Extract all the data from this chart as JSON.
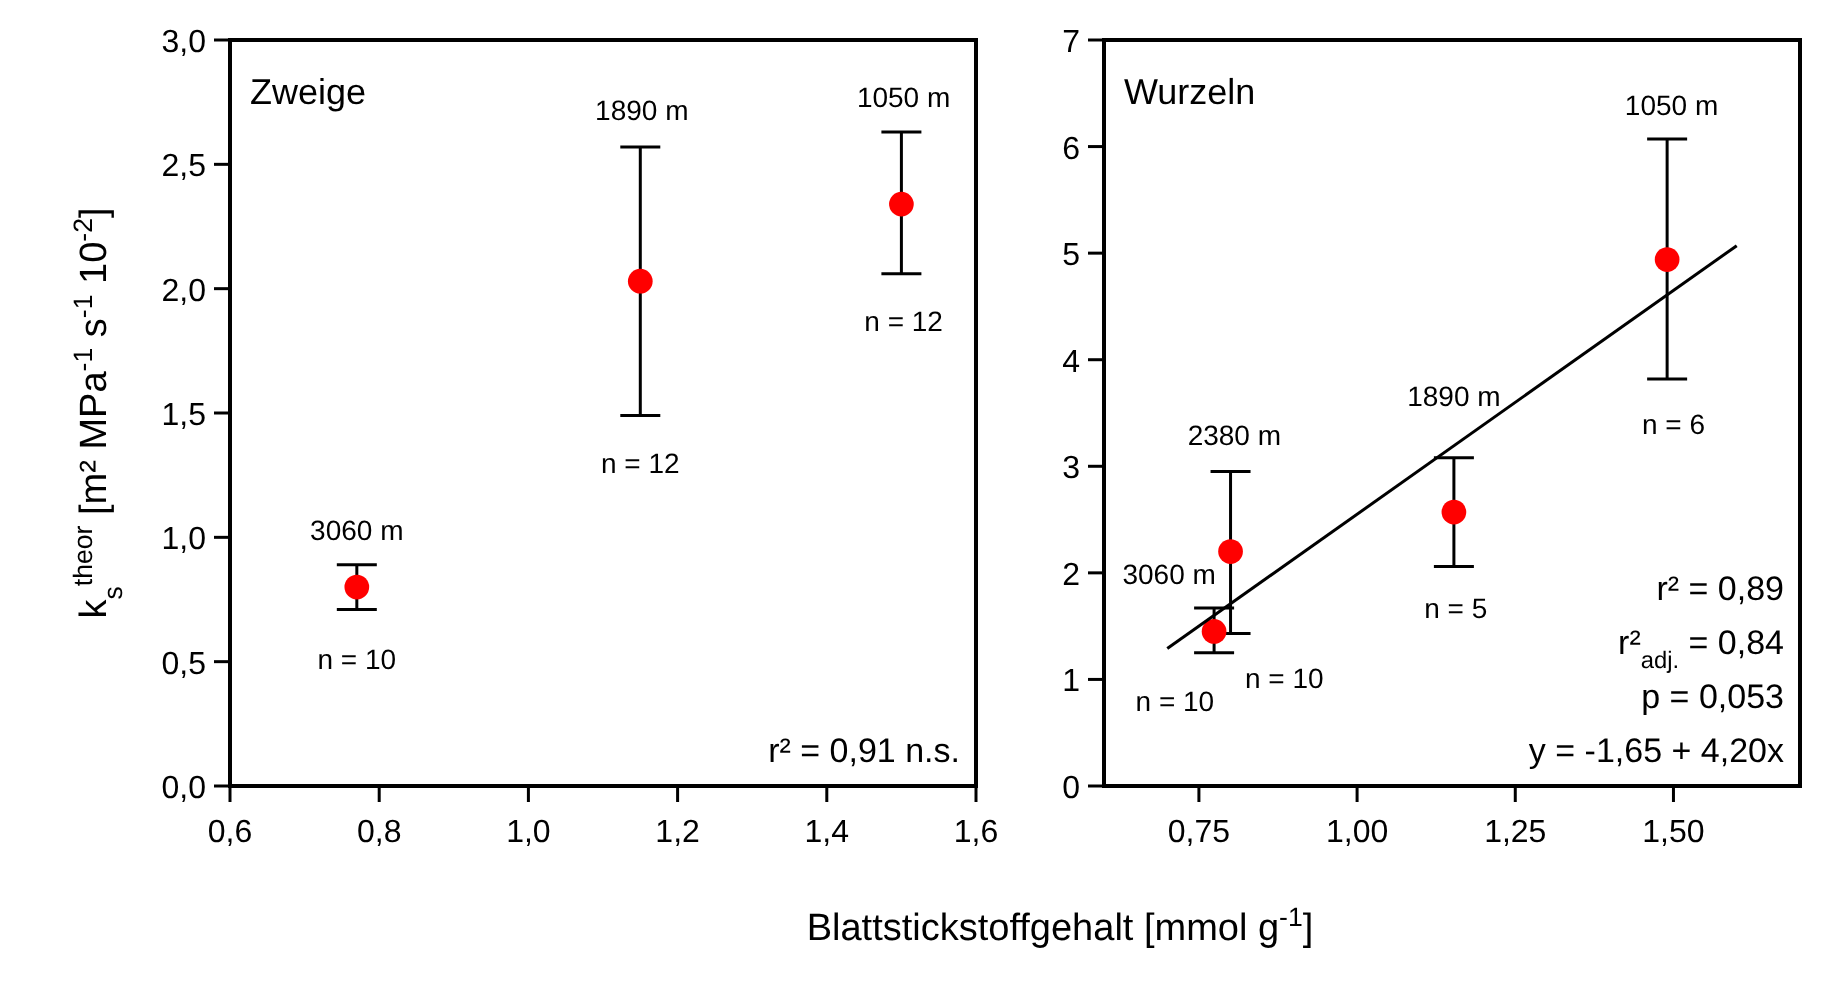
{
  "chart_data": [
    {
      "type": "scatter",
      "title": "Zweige",
      "ylabel": "k$_{s}$$^{theor}$ [m² MPa$^{-1}$ s$^{-1}$ 10$^{-2}$]",
      "xlabel": "Blattstickstoffgehalt [mmol g$^{-1}$]",
      "marker": "circle",
      "grid": false,
      "xlim": [
        0.6,
        1.6
      ],
      "xticks": [
        {
          "value": 0.6,
          "label": "0,6"
        },
        {
          "value": 0.8,
          "label": "0,8"
        },
        {
          "value": 1.0,
          "label": "1,0"
        },
        {
          "value": 1.2,
          "label": "1,2"
        },
        {
          "value": 1.4,
          "label": "1,4"
        },
        {
          "value": 1.6,
          "label": "1,6"
        }
      ],
      "ylim": [
        0,
        3
      ],
      "yticks": [
        {
          "value": 0,
          "label": "0,0"
        },
        {
          "value": 0.5,
          "label": "0,5"
        },
        {
          "value": 1.0,
          "label": "1,0"
        },
        {
          "value": 1.5,
          "label": "1,5"
        },
        {
          "value": 2.0,
          "label": "2,0"
        },
        {
          "value": 2.5,
          "label": "2,5"
        },
        {
          "value": 3.0,
          "label": "3,0"
        }
      ],
      "series": [
        {
          "type": "scatter",
          "color": "#ff0000",
          "x": [
            0.77,
            1.15,
            1.5
          ],
          "values": [
            0.8,
            2.03,
            2.34
          ],
          "errors": [
            [
              0.71,
              0.89
            ],
            [
              1.49,
              2.57
            ],
            [
              2.06,
              2.63
            ]
          ]
        }
      ],
      "annotations": [
        "3060 m",
        "n = 10",
        "1890 m",
        "n = 12",
        "1050 m",
        "n = 12",
        "r² = 0,91 n.s."
      ]
    },
    {
      "type": "scatter",
      "title": "Wurzeln",
      "marker": "circle",
      "grid": false,
      "xlim": [
        0.6,
        1.7
      ],
      "xticks": [
        {
          "value": 0.75,
          "label": "0,75"
        },
        {
          "value": 1.0,
          "label": "1,00"
        },
        {
          "value": 1.25,
          "label": "1,25"
        },
        {
          "value": 1.5,
          "label": "1,50"
        }
      ],
      "ylim": [
        0,
        7
      ],
      "yticks": [
        0,
        1,
        2,
        3,
        4,
        5,
        6,
        7
      ],
      "series": [
        {
          "type": "scatter",
          "color": "#ff0000",
          "x": [
            0.774,
            0.8,
            1.153,
            1.49
          ],
          "values": [
            1.45,
            2.2,
            2.57,
            4.94
          ],
          "errors": [
            [
              1.25,
              1.67
            ],
            [
              1.43,
              2.95
            ],
            [
              2.06,
              3.08
            ],
            [
              3.82,
              6.07
            ]
          ]
        },
        {
          "type": "line",
          "color": "#000000",
          "marker": "none",
          "x": [
            0.7,
            1.6
          ],
          "values": [
            1.29,
            5.07
          ]
        }
      ],
      "annotations": [
        "3060 m",
        "n = 10",
        "2380 m",
        "n = 10",
        "1890 m",
        "n = 5",
        "1050 m",
        "n = 6",
        "r² = 0,89",
        "r²$_{adj.}$ = 0,84",
        "p = 0,053",
        "y = -1,65 + 4,20x"
      ]
    }
  ]
}
